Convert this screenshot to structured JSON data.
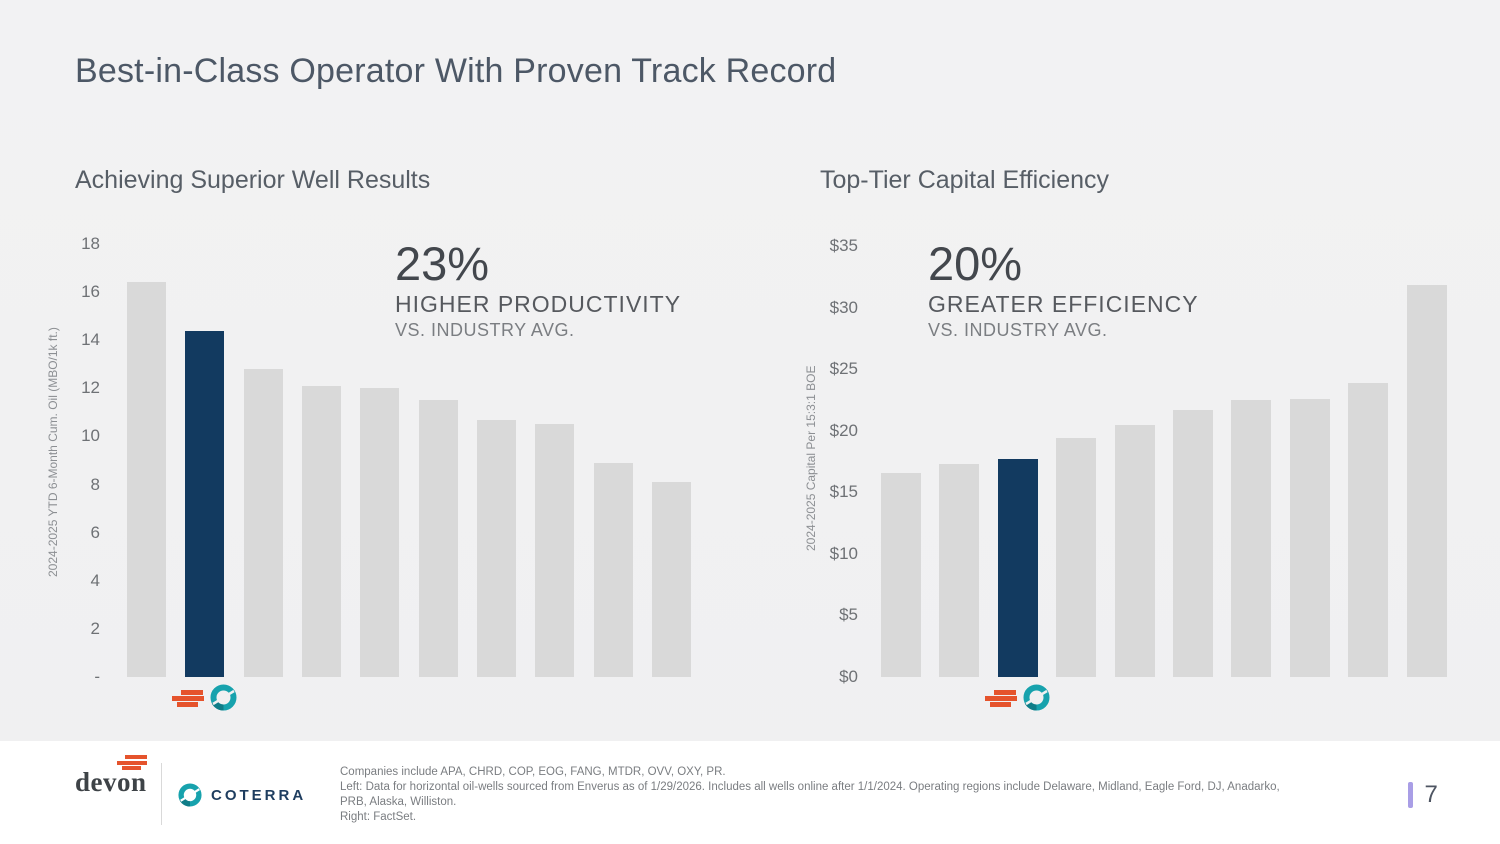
{
  "title": "Best-in-Class Operator With Proven Track Record",
  "colors": {
    "bar": "#d9d9d9",
    "highlight": "#123a60",
    "devon_orange": "#e5532c",
    "coterra_teal": "#17a2ad",
    "coterra_teal_dark": "#0f7d88",
    "page_accent": "#a99ee6",
    "title_text": "#4d5866"
  },
  "chart_data": [
    {
      "id": "well-results",
      "type": "bar",
      "title": "Achieving Superior Well Results",
      "ylabel": "2024-2025 YTD 6-Month Cum. Oil (MBO/1k ft.)",
      "ylim": [
        0,
        18
      ],
      "yticks": [
        {
          "value": 18,
          "label": "18"
        },
        {
          "value": 16,
          "label": "16"
        },
        {
          "value": 14,
          "label": "14"
        },
        {
          "value": 12,
          "label": "12"
        },
        {
          "value": 10,
          "label": "10"
        },
        {
          "value": 8,
          "label": "8"
        },
        {
          "value": 6,
          "label": "6"
        },
        {
          "value": 4,
          "label": "4"
        },
        {
          "value": 2,
          "label": "2"
        },
        {
          "value": 0,
          "label": "-"
        }
      ],
      "categories": [
        "",
        "",
        "",
        "",
        "",
        "",
        "",
        "",
        "",
        ""
      ],
      "values": [
        16.4,
        14.4,
        12.8,
        12.1,
        12.0,
        11.5,
        10.7,
        10.5,
        8.9,
        8.1
      ],
      "highlight_index": 1,
      "grid": false,
      "callout": {
        "stat": "23%",
        "line1": "HIGHER PRODUCTIVITY",
        "line2": "VS. INDUSTRY AVG."
      }
    },
    {
      "id": "capital-efficiency",
      "type": "bar",
      "title": "Top-Tier Capital Efficiency",
      "ylabel": "2024-2025 Capital Per 15:3:1 BOE",
      "ylim": [
        0,
        35
      ],
      "yticks": [
        {
          "value": 35,
          "label": "$35"
        },
        {
          "value": 30,
          "label": "$30"
        },
        {
          "value": 25,
          "label": "$25"
        },
        {
          "value": 20,
          "label": "$20"
        },
        {
          "value": 15,
          "label": "$15"
        },
        {
          "value": 10,
          "label": "$10"
        },
        {
          "value": 5,
          "label": "$5"
        },
        {
          "value": 0,
          "label": "$0"
        }
      ],
      "categories": [
        "",
        "",
        "",
        "",
        "",
        "",
        "",
        "",
        "",
        ""
      ],
      "values": [
        16.6,
        17.3,
        17.7,
        19.4,
        20.5,
        21.7,
        22.5,
        22.6,
        23.9,
        31.8
      ],
      "highlight_index": 2,
      "grid": false,
      "callout": {
        "stat": "20%",
        "line1": "GREATER EFFICIENCY",
        "line2": "VS. INDUSTRY AVG."
      }
    }
  ],
  "footer": {
    "devon_wordmark": "devon",
    "coterra_wordmark": "COTERRA",
    "notes": [
      "Companies include APA, CHRD, COP, EOG, FANG, MTDR, OVV, OXY, PR.",
      "Left: Data for horizontal oil-wells sourced from Enverus as of 1/29/2026. Includes all wells online after 1/1/2024. Operating regions include Delaware, Midland, Eagle Ford, DJ, Anadarko,",
      "PRB, Alaska, Williston.",
      "Right: FactSet."
    ],
    "page_number": "7"
  }
}
